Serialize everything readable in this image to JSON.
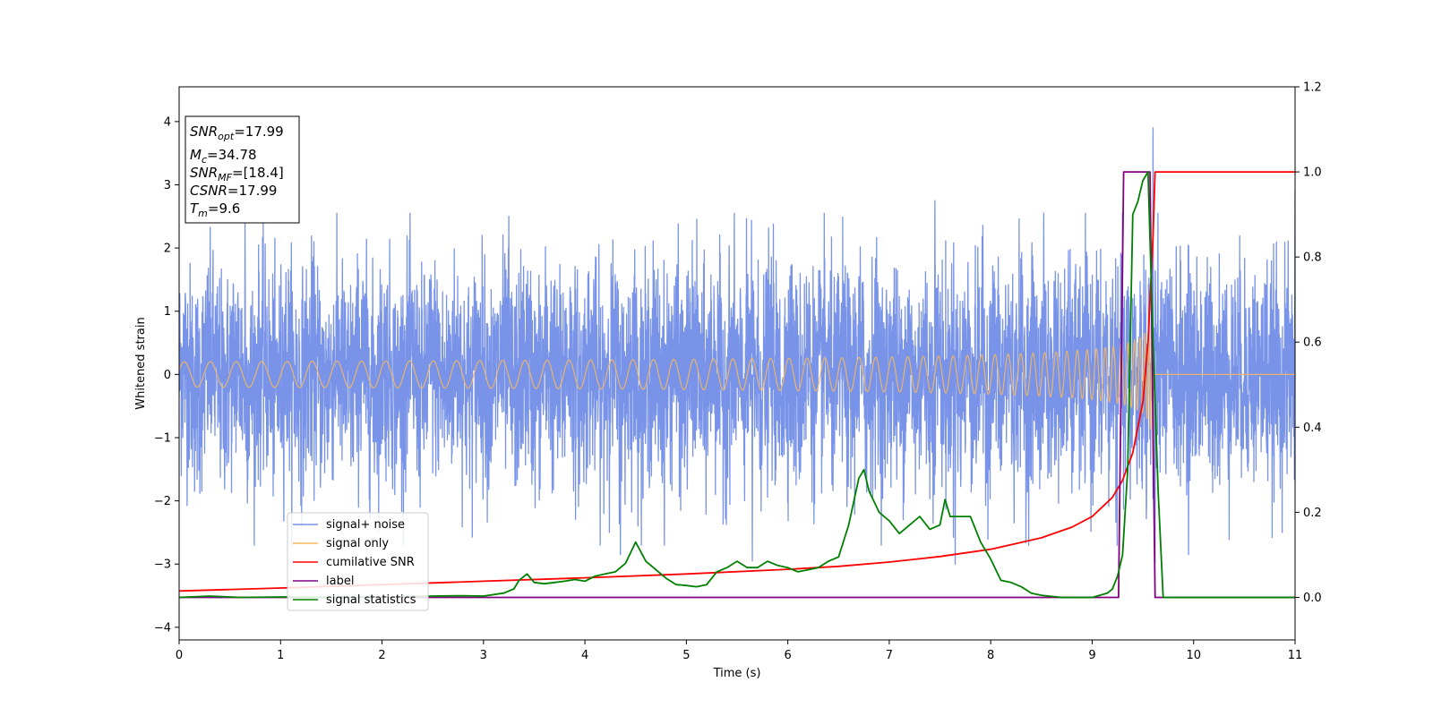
{
  "chart_data": {
    "type": "line",
    "title": "",
    "xlabel": "Time (s)",
    "ylabel": "Whitened strain",
    "xlim": [
      0,
      11
    ],
    "ylim": [
      -4.2,
      4.55
    ],
    "y2lim": [
      -0.1,
      1.2
    ],
    "x_ticks": [
      "0",
      "1",
      "2",
      "3",
      "4",
      "5",
      "6",
      "7",
      "8",
      "9",
      "10",
      "11"
    ],
    "y_ticks": [
      "−4",
      "−3",
      "−2",
      "−1",
      "0",
      "1",
      "2",
      "3",
      "4"
    ],
    "y2_ticks": [
      "0.0",
      "0.2",
      "0.4",
      "0.6",
      "0.8",
      "1.0",
      "1.2"
    ],
    "grid": false,
    "legend_position": "lower-left",
    "legend": [
      "signal+ noise",
      "signal only",
      "cumilative SNR",
      "label",
      "signal statistics"
    ],
    "colors": {
      "signal_noise": "#7893e8",
      "signal_only": "#f5b860",
      "cumulative_snr": "#ff0000",
      "label": "#800080",
      "signal_statistics": "#008000"
    },
    "info_box": {
      "snr_opt_base": "SNR",
      "snr_opt_sub": "opt",
      "snr_opt_value": "=17.99",
      "mc_base": "M",
      "mc_sub": "c",
      "mc_value": "=34.78",
      "snr_mf_base": "SNR",
      "snr_mf_sub": "MF",
      "snr_mf_value": "=[18.4]",
      "csnr_base": "CSNR",
      "csnr_value": "=17.99",
      "tm_base": "T",
      "tm_sub": "m",
      "tm_value": "=9.6"
    },
    "series": [
      {
        "name": "signal+ noise",
        "axis": "left",
        "envelope_std": 0.85,
        "extremes": [
          {
            "x": 9.6,
            "y": 3.9
          },
          {
            "x": 9.62,
            "y": -2.98
          },
          {
            "x": 0.65,
            "y": 2.4
          },
          {
            "x": 3.25,
            "y": 2.5
          },
          {
            "x": 7.45,
            "y": 2.75
          },
          {
            "x": 11.0,
            "y": 2.9
          },
          {
            "x": 5.65,
            "y": -2.95
          },
          {
            "x": 7.65,
            "y": -3.0
          },
          {
            "x": 4.35,
            "y": -2.85
          },
          {
            "x": 9.95,
            "y": -2.85
          }
        ]
      },
      {
        "name": "signal only",
        "axis": "left",
        "t_merger": 9.6,
        "peak_amplitude": 1.4
      },
      {
        "name": "cumilative SNR",
        "axis": "right",
        "x": [
          0,
          1,
          2,
          3,
          4,
          5,
          6,
          6.5,
          7,
          7.5,
          8,
          8.5,
          8.8,
          9.0,
          9.2,
          9.3,
          9.4,
          9.5,
          9.55,
          9.6,
          9.62,
          11
        ],
        "y": [
          0.015,
          0.022,
          0.03,
          0.038,
          0.046,
          0.055,
          0.066,
          0.073,
          0.083,
          0.096,
          0.113,
          0.14,
          0.165,
          0.19,
          0.235,
          0.275,
          0.34,
          0.46,
          0.6,
          0.85,
          1.0,
          1.0
        ]
      },
      {
        "name": "label",
        "axis": "right",
        "x": [
          0,
          9.26,
          9.31,
          9.57,
          9.62,
          11
        ],
        "y": [
          0,
          0,
          1,
          1,
          0,
          0
        ]
      },
      {
        "name": "signal statistics",
        "axis": "right",
        "x": [
          0,
          0.3,
          0.6,
          1,
          1.5,
          2,
          2.5,
          2.8,
          3,
          3.2,
          3.3,
          3.35,
          3.43,
          3.5,
          3.6,
          3.7,
          3.8,
          3.9,
          4,
          4.1,
          4.2,
          4.3,
          4.4,
          4.5,
          4.6,
          4.7,
          4.8,
          4.9,
          5,
          5.1,
          5.2,
          5.3,
          5.4,
          5.5,
          5.6,
          5.7,
          5.8,
          5.9,
          6,
          6.1,
          6.2,
          6.3,
          6.4,
          6.5,
          6.6,
          6.7,
          6.75,
          6.8,
          6.9,
          7.0,
          7.1,
          7.2,
          7.3,
          7.4,
          7.5,
          7.55,
          7.6,
          7.7,
          7.8,
          7.9,
          8.0,
          8.1,
          8.2,
          8.3,
          8.4,
          8.5,
          8.7,
          9,
          9.15,
          9.2,
          9.25,
          9.3,
          9.35,
          9.4,
          9.45,
          9.5,
          9.55,
          9.6,
          9.65,
          9.7,
          11
        ],
        "y": [
          0,
          0.003,
          0.0,
          0.001,
          0.0,
          0.001,
          0.003,
          0.004,
          0.003,
          0.01,
          0.02,
          0.04,
          0.055,
          0.035,
          0.032,
          0.035,
          0.038,
          0.042,
          0.038,
          0.05,
          0.055,
          0.06,
          0.08,
          0.13,
          0.085,
          0.065,
          0.045,
          0.03,
          0.028,
          0.025,
          0.03,
          0.06,
          0.07,
          0.085,
          0.07,
          0.07,
          0.085,
          0.075,
          0.07,
          0.06,
          0.065,
          0.07,
          0.085,
          0.095,
          0.17,
          0.28,
          0.3,
          0.25,
          0.2,
          0.18,
          0.15,
          0.17,
          0.19,
          0.16,
          0.17,
          0.23,
          0.19,
          0.19,
          0.19,
          0.13,
          0.09,
          0.04,
          0.035,
          0.025,
          0.01,
          0.005,
          0.0,
          0.0,
          0.01,
          0.02,
          0.05,
          0.1,
          0.3,
          0.9,
          0.93,
          0.98,
          1.0,
          0.6,
          0.25,
          0.0,
          0.0
        ]
      }
    ]
  }
}
